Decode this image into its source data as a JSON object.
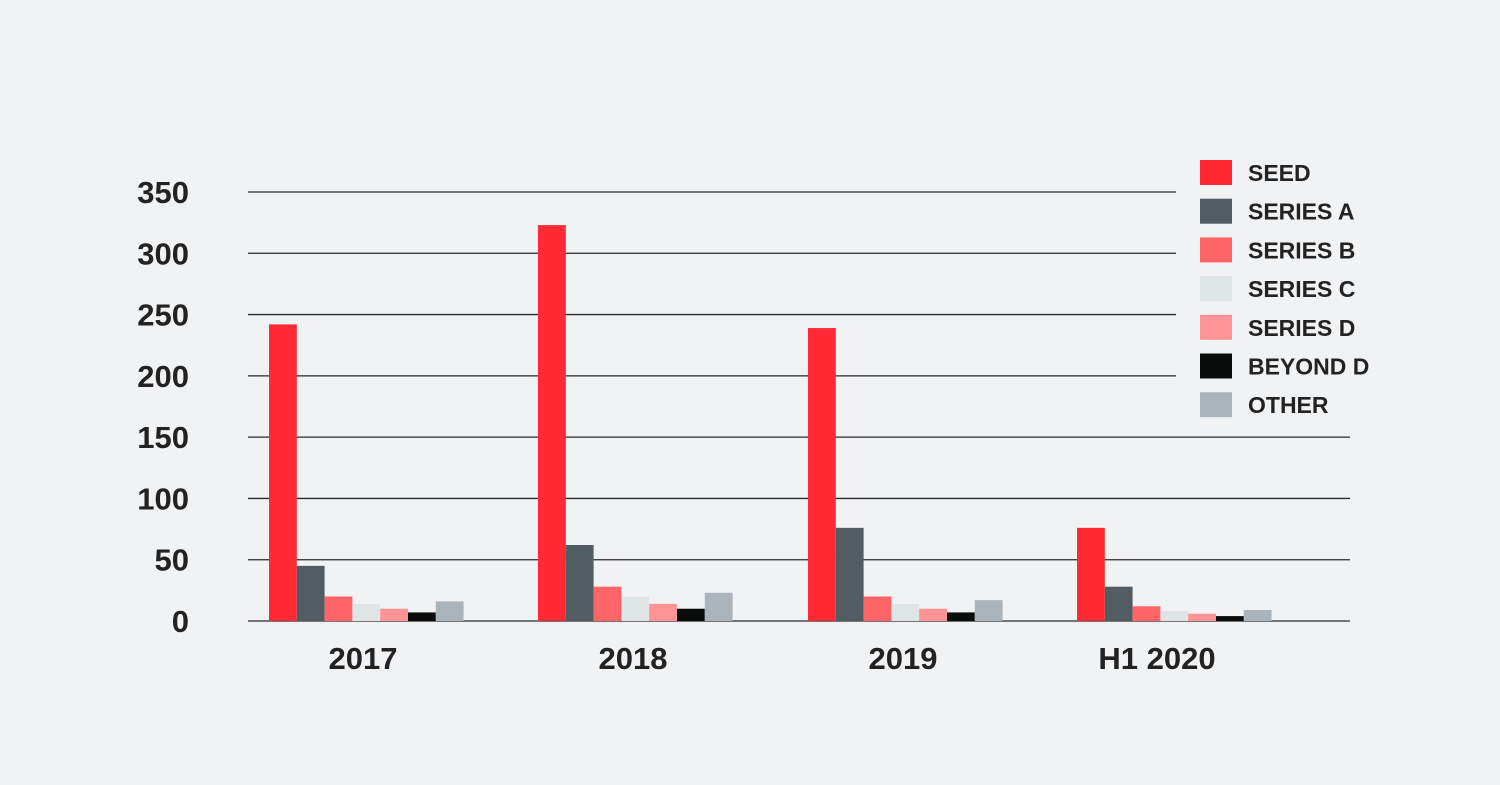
{
  "chart_data": {
    "type": "bar",
    "categories": [
      "2017",
      "2018",
      "2019",
      "H1 2020"
    ],
    "series": [
      {
        "name": "SEED",
        "color": "#ff2a33",
        "values": [
          242,
          323,
          239,
          76
        ]
      },
      {
        "name": "SERIES A",
        "color": "#525c63",
        "values": [
          45,
          62,
          76,
          28
        ]
      },
      {
        "name": "SERIES B",
        "color": "#ff6466",
        "values": [
          20,
          28,
          20,
          12
        ]
      },
      {
        "name": "SERIES C",
        "color": "#dfe4e4",
        "values": [
          14,
          20,
          14,
          8
        ]
      },
      {
        "name": "SERIES D",
        "color": "#ff9496",
        "values": [
          10,
          14,
          10,
          6
        ]
      },
      {
        "name": "BEYOND D",
        "color": "#0a0b0b",
        "values": [
          7,
          10,
          7,
          4
        ]
      },
      {
        "name": "OTHER",
        "color": "#a9b5bb",
        "values": [
          16,
          23,
          17,
          9
        ]
      }
    ],
    "yticks": [
      "0",
      "50",
      "100",
      "150",
      "200",
      "250",
      "300",
      "350"
    ],
    "ylim": [
      0,
      350
    ],
    "grid": true,
    "legend": "top-right"
  }
}
